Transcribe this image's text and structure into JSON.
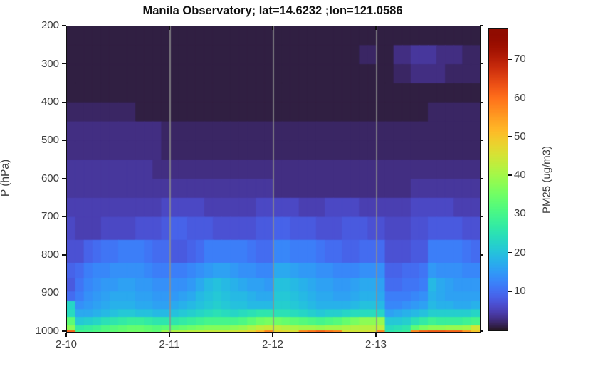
{
  "title": "Manila Observatory; lat=14.6232 ;lon=121.0586",
  "y_axis": {
    "label": "P (hPa)",
    "ticks": [
      200,
      300,
      400,
      500,
      600,
      700,
      800,
      900,
      1000
    ],
    "range": [
      200,
      1000
    ]
  },
  "x_axis": {
    "tick_labels": [
      "2-10",
      "2-11",
      "2-12",
      "2-13"
    ],
    "gridline_days": [
      1,
      2,
      3
    ]
  },
  "colorbar": {
    "label": "PM25 (ug/m3)",
    "ticks": [
      10,
      20,
      30,
      40,
      50,
      60,
      70
    ],
    "range": [
      0,
      78
    ],
    "colormap": "turbo"
  },
  "colors": {
    "background": "#ffffff",
    "axis_line": "#111111",
    "tick_label": "#3d3d3d",
    "gridline": "#8f8f8f",
    "heatmap_low": "#30123b",
    "heatmap_high": "#7a0403"
  },
  "chart_data": {
    "type": "heatmap",
    "title": "Manila Observatory; lat=14.6232 ;lon=121.0586",
    "xlabel_ticks": [
      "2-10",
      "2-11",
      "2-12",
      "2-13"
    ],
    "ylabel": "P (hPa)",
    "value_label": "PM25 (ug/m3)",
    "x_start": "2-10 00:00",
    "x_end": "2-14 00:00",
    "hours_per_column": 2,
    "columns": 48,
    "clim": [
      0,
      78
    ],
    "y_range_hpa": [
      200,
      1000
    ],
    "pressure_edges_hpa": [
      200,
      250,
      300,
      350,
      400,
      450,
      500,
      550,
      600,
      650,
      700,
      760,
      820,
      860,
      895,
      920,
      942,
      962,
      984,
      997,
      1000
    ],
    "values": [
      [
        1,
        1,
        1,
        1,
        1,
        1,
        1,
        1,
        1,
        1,
        1,
        1,
        1,
        1,
        1,
        1,
        1,
        1,
        1,
        1,
        1,
        1,
        1,
        1,
        1,
        1,
        1,
        1,
        1,
        1,
        1,
        1,
        1,
        1,
        1,
        1,
        1,
        1,
        1,
        1,
        1,
        1,
        1,
        1,
        1,
        1,
        1,
        1
      ],
      [
        1,
        1,
        1,
        1,
        1,
        1,
        1,
        1,
        1,
        1,
        1,
        1,
        1,
        1,
        1,
        1,
        1,
        1,
        1,
        1,
        1,
        1,
        1,
        1,
        1,
        1,
        1,
        1,
        1,
        1,
        1,
        1,
        1,
        1,
        2,
        2,
        1,
        1,
        3,
        3,
        4,
        4,
        4,
        3,
        3,
        3,
        2,
        2
      ],
      [
        1,
        1,
        1,
        1,
        1,
        1,
        1,
        1,
        1,
        1,
        1,
        1,
        1,
        1,
        1,
        1,
        1,
        1,
        1,
        1,
        1,
        1,
        1,
        1,
        1,
        1,
        1,
        1,
        1,
        1,
        1,
        1,
        1,
        1,
        1,
        1,
        1,
        1,
        2,
        2,
        3,
        3,
        3,
        3,
        2,
        2,
        2,
        2
      ],
      [
        1,
        1,
        1,
        1,
        1,
        1,
        1,
        1,
        1,
        1,
        1,
        1,
        1,
        1,
        1,
        1,
        1,
        1,
        1,
        1,
        1,
        1,
        1,
        1,
        1,
        1,
        1,
        1,
        1,
        1,
        1,
        1,
        1,
        1,
        1,
        1,
        1,
        1,
        1,
        1,
        1,
        1,
        1,
        1,
        1,
        1,
        1,
        1
      ],
      [
        2,
        2,
        2,
        2,
        2,
        2,
        2,
        2,
        1,
        1,
        1,
        1,
        1,
        1,
        1,
        1,
        1,
        1,
        1,
        1,
        1,
        1,
        1,
        1,
        1,
        1,
        1,
        1,
        1,
        1,
        1,
        1,
        1,
        1,
        1,
        1,
        1,
        1,
        1,
        1,
        1,
        1,
        2,
        2,
        2,
        2,
        2,
        2
      ],
      [
        3,
        3,
        3,
        3,
        3,
        3,
        3,
        3,
        3,
        3,
        3,
        2,
        2,
        2,
        2,
        2,
        2,
        2,
        2,
        2,
        2,
        2,
        2,
        2,
        2,
        2,
        2,
        2,
        2,
        2,
        2,
        2,
        2,
        2,
        2,
        2,
        2,
        2,
        2,
        2,
        2,
        2,
        2,
        2,
        2,
        2,
        2,
        2
      ],
      [
        3,
        3,
        3,
        3,
        3,
        3,
        3,
        3,
        3,
        3,
        3,
        2,
        2,
        2,
        2,
        2,
        2,
        2,
        2,
        2,
        2,
        2,
        2,
        2,
        2,
        2,
        2,
        2,
        2,
        2,
        2,
        2,
        2,
        2,
        2,
        2,
        2,
        2,
        2,
        2,
        2,
        2,
        2,
        2,
        2,
        2,
        2,
        2
      ],
      [
        4,
        4,
        4,
        4,
        4,
        4,
        4,
        4,
        4,
        4,
        3,
        3,
        3,
        3,
        3,
        3,
        3,
        3,
        3,
        3,
        3,
        3,
        3,
        3,
        3,
        3,
        3,
        3,
        3,
        3,
        3,
        3,
        3,
        3,
        3,
        3,
        3,
        3,
        3,
        3,
        3,
        3,
        3,
        3,
        3,
        3,
        3,
        3
      ],
      [
        4,
        4,
        4,
        4,
        4,
        4,
        4,
        4,
        4,
        4,
        4,
        4,
        4,
        4,
        4,
        4,
        4,
        4,
        4,
        4,
        4,
        4,
        4,
        4,
        3,
        3,
        3,
        3,
        3,
        3,
        3,
        3,
        3,
        3,
        3,
        3,
        3,
        3,
        3,
        3,
        4,
        4,
        4,
        4,
        4,
        4,
        4,
        4
      ],
      [
        5,
        5,
        5,
        5,
        5,
        5,
        5,
        5,
        5,
        5,
        5,
        6,
        6,
        6,
        6,
        6,
        5,
        5,
        5,
        5,
        5,
        5,
        6,
        6,
        6,
        6,
        6,
        5,
        5,
        5,
        6,
        6,
        6,
        6,
        5,
        5,
        5,
        5,
        5,
        5,
        6,
        6,
        6,
        6,
        6,
        5,
        5,
        5
      ],
      [
        6,
        5,
        5,
        5,
        6,
        6,
        6,
        6,
        7,
        7,
        7,
        8,
        9,
        9,
        8,
        8,
        8,
        7,
        7,
        7,
        7,
        7,
        8,
        8,
        9,
        9,
        8,
        8,
        8,
        7,
        7,
        7,
        8,
        8,
        8,
        7,
        7,
        6,
        6,
        6,
        7,
        7,
        8,
        8,
        8,
        8,
        7,
        7
      ],
      [
        7,
        7,
        9,
        10,
        11,
        11,
        12,
        12,
        12,
        11,
        10,
        10,
        8,
        8,
        9,
        10,
        12,
        12,
        12,
        12,
        12,
        11,
        10,
        10,
        13,
        13,
        12,
        12,
        12,
        11,
        10,
        10,
        9,
        9,
        10,
        10,
        10,
        7,
        7,
        7,
        8,
        8,
        12,
        12,
        12,
        12,
        11,
        10
      ],
      [
        9,
        10,
        12,
        13,
        13,
        14,
        14,
        14,
        14,
        13,
        12,
        12,
        12,
        12,
        13,
        14,
        15,
        16,
        16,
        15,
        14,
        14,
        13,
        13,
        17,
        17,
        16,
        15,
        15,
        14,
        14,
        13,
        13,
        13,
        14,
        14,
        14,
        9,
        9,
        10,
        10,
        11,
        15,
        14,
        14,
        14,
        13,
        13
      ],
      [
        8,
        11,
        13,
        14,
        15,
        15,
        16,
        16,
        15,
        15,
        14,
        14,
        14,
        14,
        15,
        17,
        19,
        20,
        19,
        18,
        17,
        16,
        16,
        15,
        20,
        20,
        19,
        18,
        17,
        16,
        16,
        15,
        15,
        16,
        17,
        17,
        16,
        10,
        10,
        11,
        11,
        12,
        19,
        17,
        16,
        15,
        15,
        15
      ],
      [
        10,
        12,
        14,
        15,
        16,
        17,
        17,
        17,
        16,
        16,
        15,
        15,
        15,
        16,
        17,
        19,
        20,
        21,
        20,
        19,
        19,
        18,
        17,
        17,
        21,
        21,
        20,
        19,
        18,
        17,
        17,
        16,
        16,
        17,
        18,
        18,
        17,
        12,
        12,
        12,
        13,
        14,
        18,
        17,
        16,
        16,
        16,
        16
      ],
      [
        23,
        14,
        15,
        16,
        17,
        18,
        18,
        18,
        17,
        17,
        16,
        16,
        17,
        18,
        19,
        20,
        21,
        22,
        21,
        20,
        20,
        19,
        19,
        19,
        22,
        22,
        21,
        20,
        19,
        18,
        18,
        18,
        18,
        19,
        20,
        20,
        19,
        13,
        13,
        14,
        15,
        16,
        19,
        18,
        18,
        17,
        17,
        18
      ],
      [
        24,
        17,
        17,
        18,
        19,
        20,
        21,
        21,
        20,
        20,
        19,
        19,
        20,
        21,
        22,
        23,
        24,
        25,
        24,
        23,
        24,
        25,
        26,
        26,
        25,
        25,
        24,
        23,
        22,
        21,
        22,
        22,
        23,
        24,
        24,
        24,
        23,
        16,
        17,
        18,
        19,
        20,
        22,
        22,
        22,
        22,
        22,
        23
      ],
      [
        33,
        21,
        22,
        23,
        25,
        26,
        27,
        28,
        28,
        27,
        26,
        26,
        26,
        27,
        28,
        29,
        30,
        30,
        30,
        30,
        31,
        33,
        35,
        36,
        35,
        34,
        33,
        32,
        31,
        30,
        31,
        32,
        34,
        36,
        38,
        38,
        39,
        21,
        21,
        22,
        25,
        27,
        29,
        28,
        28,
        28,
        29,
        30
      ],
      [
        38,
        27,
        28,
        29,
        31,
        32,
        33,
        34,
        34,
        33,
        32,
        33,
        33,
        34,
        35,
        36,
        37,
        37,
        37,
        38,
        39,
        41,
        43,
        44,
        43,
        42,
        41,
        40,
        40,
        39,
        40,
        40,
        41,
        42,
        42,
        42,
        43,
        24,
        25,
        26,
        33,
        36,
        38,
        38,
        39,
        39,
        40,
        45
      ],
      [
        62,
        30,
        30,
        31,
        32,
        33,
        34,
        35,
        35,
        34,
        33,
        40,
        42,
        42,
        43,
        43,
        44,
        44,
        44,
        45,
        46,
        48,
        52,
        58,
        48,
        47,
        46,
        58,
        60,
        62,
        60,
        58,
        46,
        45,
        45,
        46,
        58,
        26,
        27,
        28,
        58,
        62,
        63,
        63,
        62,
        62,
        56,
        50
      ]
    ]
  }
}
